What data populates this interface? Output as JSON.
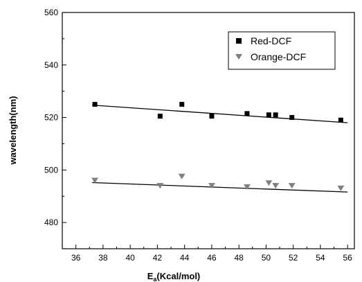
{
  "chart_data": {
    "type": "scatter",
    "title": "",
    "xlabel": "E_{a}(Kcal/mol)",
    "xlabel_main": "E",
    "xlabel_sub": "a",
    "xlabel_rest": "(Kcal/mol)",
    "ylabel": "wavelength(nm)",
    "xlim": [
      35,
      56.5
    ],
    "ylim": [
      470,
      560
    ],
    "xticks": [
      36,
      38,
      40,
      42,
      44,
      46,
      48,
      50,
      52,
      54,
      56
    ],
    "yticks": [
      480,
      500,
      520,
      540,
      560
    ],
    "grid": false,
    "legend_position": "top-right",
    "series": [
      {
        "name": "Red-DCF",
        "marker": "square",
        "color": "#000000",
        "x": [
          37.4,
          42.2,
          43.8,
          46.0,
          48.6,
          50.2,
          50.7,
          51.9,
          55.5
        ],
        "y": [
          525,
          520.5,
          525,
          520.5,
          521.5,
          521,
          521,
          520,
          519
        ],
        "fit": {
          "x": [
            37.2,
            56.0
          ],
          "y": [
            524.7,
            518.0
          ]
        }
      },
      {
        "name": "Orange-DCF",
        "marker": "triangle-down",
        "color": "#808080",
        "x": [
          37.4,
          42.2,
          43.8,
          46.0,
          48.6,
          50.2,
          50.7,
          51.9,
          55.5
        ],
        "y": [
          496,
          494,
          497.5,
          494,
          493.5,
          495,
          494,
          494,
          493
        ],
        "fit": {
          "x": [
            37.2,
            56.0
          ],
          "y": [
            495.2,
            491.6
          ]
        }
      }
    ]
  }
}
